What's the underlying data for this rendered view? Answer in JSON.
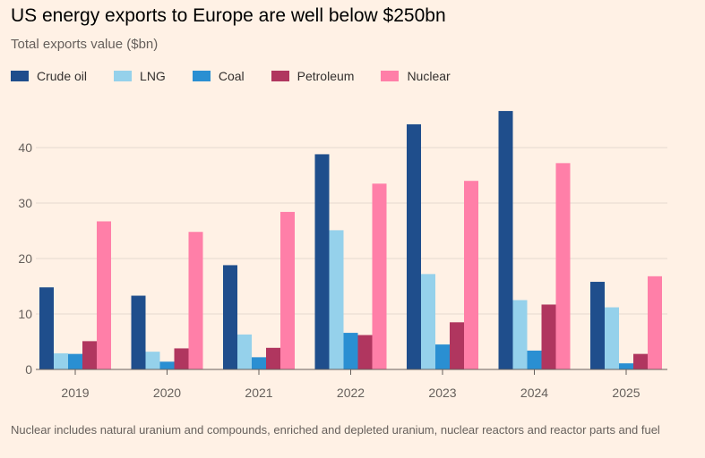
{
  "chart_data": {
    "type": "bar",
    "title": "US energy exports to Europe are well below $250bn",
    "subtitle": "Total exports value ($bn)",
    "categories": [
      "2019",
      "2020",
      "2021",
      "2022",
      "2023",
      "2024",
      "2025"
    ],
    "series": [
      {
        "name": "Crude oil",
        "color": "#1F4E8C",
        "values": [
          14.8,
          13.3,
          18.8,
          38.8,
          44.2,
          46.6,
          15.8
        ]
      },
      {
        "name": "LNG",
        "color": "#95D1EB",
        "values": [
          2.9,
          3.2,
          6.3,
          25.1,
          17.2,
          12.5,
          11.2
        ]
      },
      {
        "name": "Coal",
        "color": "#2A8FD2",
        "values": [
          2.8,
          1.4,
          2.2,
          6.6,
          4.5,
          3.4,
          1.1
        ]
      },
      {
        "name": "Petroleum",
        "color": "#B0365F",
        "values": [
          5.1,
          3.8,
          3.9,
          6.2,
          8.5,
          11.7,
          2.8
        ]
      },
      {
        "name": "Nuclear",
        "color": "#FF7FA8",
        "values": [
          26.7,
          24.8,
          28.4,
          33.5,
          34.0,
          37.2,
          16.8
        ]
      }
    ],
    "yticks": [
      0,
      10,
      20,
      30,
      40
    ],
    "ylim": [
      0,
      50
    ],
    "xlabel": "",
    "ylabel": "",
    "grid": true,
    "legend": "top-left",
    "footnote": "Nuclear includes natural uranium and compounds, enriched and depleted uranium, nuclear reactors and reactor parts and fuel"
  }
}
